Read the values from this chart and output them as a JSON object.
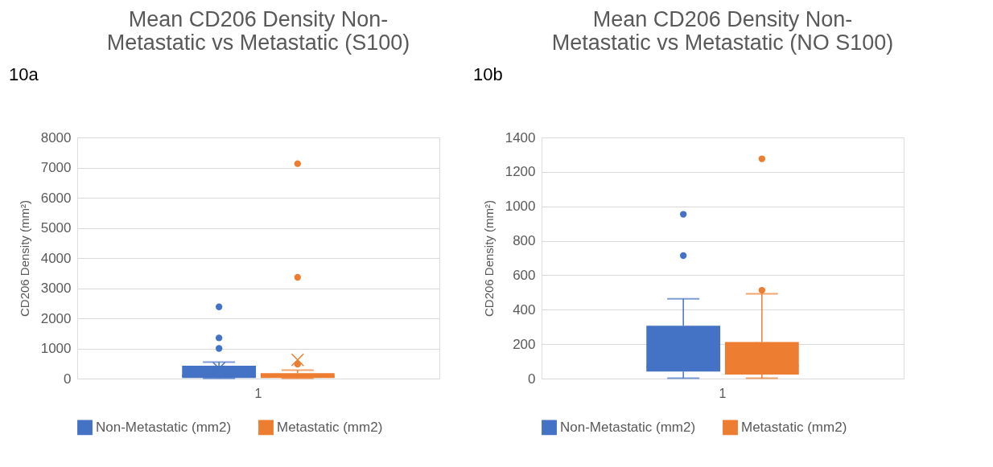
{
  "chart_data": [
    {
      "type": "box",
      "title": "Mean CD206 Density Non-\nMetastatic vs Metastatic (S100)",
      "annotations": [
        "10a"
      ],
      "ylabel": "CD206 Density (mm²)",
      "categories": [
        "1"
      ],
      "ylim": [
        0,
        8000
      ],
      "yticks": [
        0,
        1000,
        2000,
        3000,
        4000,
        5000,
        6000,
        7000,
        8000
      ],
      "grid": "y",
      "legend": "bottom",
      "series": [
        {
          "name": "Non-Metastatic (mm2)",
          "color": "#4472c4",
          "boxes": [
            {
              "low": 5,
              "q1": 20,
              "median": 100,
              "q3": 430,
              "high": 550,
              "mean": 340,
              "outliers": [
                1000,
                1350,
                2380
              ]
            }
          ]
        },
        {
          "name": "Metastatic (mm2)",
          "color": "#ed7d31",
          "boxes": [
            {
              "low": 5,
              "q1": 20,
              "median": 70,
              "q3": 180,
              "high": 280,
              "mean": 620,
              "outliers": [
                480,
                3360,
                7130
              ]
            }
          ]
        }
      ]
    },
    {
      "type": "box",
      "title": "Mean CD206 Density Non-\nMetastatic vs Metastatic (NO S100)",
      "annotations": [
        "10b"
      ],
      "ylabel": "CD206 Density (mm²)",
      "categories": [
        "1"
      ],
      "ylim": [
        0,
        1400
      ],
      "yticks": [
        0,
        200,
        400,
        600,
        800,
        1000,
        1200,
        1400
      ],
      "grid": "y",
      "legend": "bottom",
      "series": [
        {
          "name": "Non-Metastatic (mm2)",
          "color": "#4472c4",
          "boxes": [
            {
              "low": 2,
              "q1": 41,
              "median": 68,
              "q3": 307,
              "high": 463,
              "mean": 189,
              "outliers": [
                714,
                954
              ]
            }
          ]
        },
        {
          "name": "Metastatic (mm2)",
          "color": "#ed7d31",
          "boxes": [
            {
              "low": 2,
              "q1": 23,
              "median": 72,
              "q3": 212,
              "high": 492,
              "mean": 177,
              "outliers": [
                513,
                1276
              ]
            }
          ]
        }
      ]
    }
  ]
}
